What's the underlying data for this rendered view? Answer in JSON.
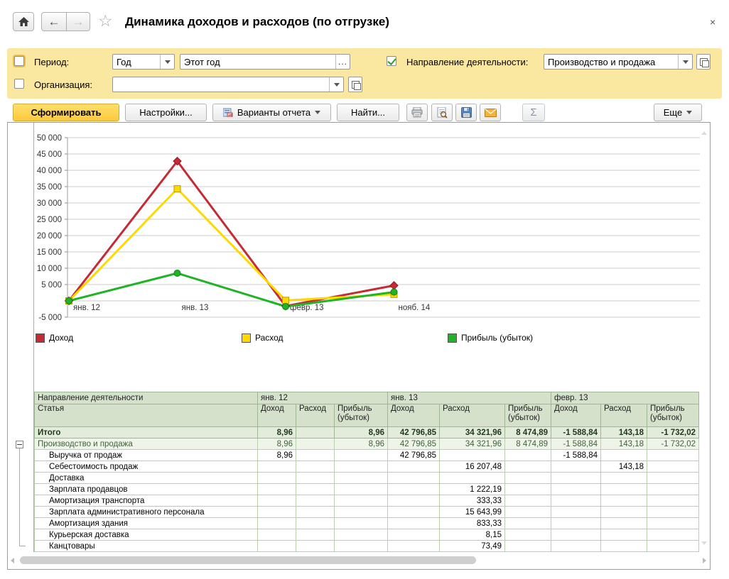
{
  "window": {
    "title": "Динамика доходов и расходов (по отгрузке)",
    "close": "×",
    "back_glyph": "←",
    "forward_glyph": "→",
    "star_glyph": "☆"
  },
  "filters": {
    "period": {
      "label": "Период:",
      "checked": false,
      "kind_value": "Год",
      "value": "Этот год",
      "more_button": "..."
    },
    "organization": {
      "label": "Организация:",
      "checked": false,
      "value": ""
    },
    "business_line": {
      "label": "Направление деятельности:",
      "checked": true,
      "value": "Производство и продажа"
    }
  },
  "toolbar": {
    "generate": "Сформировать",
    "settings": "Настройки...",
    "report_variants": "Варианты отчета",
    "find": "Найти...",
    "print_icon": "printer",
    "preview_icon": "print-preview",
    "save_icon": "save",
    "mail_icon": "email",
    "sigma": "Σ",
    "more": "Еще"
  },
  "chart_data": {
    "type": "line",
    "categories": [
      "янв. 12",
      "янв. 13",
      "февр. 13",
      "нояб. 14"
    ],
    "series": [
      {
        "name": "Доход",
        "color": "#c52b35",
        "marker": "diamond",
        "marker_stroke": "#8f1a22",
        "values": [
          8.96,
          42796.85,
          -1588.84,
          4700
        ]
      },
      {
        "name": "Расход",
        "color": "#ffd800",
        "marker": "square",
        "marker_stroke": "#bb9c00",
        "values": [
          0,
          34321.96,
          143.18,
          2000
        ]
      },
      {
        "name": "Прибыль (убыток)",
        "color": "#1fb325",
        "marker": "circle",
        "marker_stroke": "#12831a",
        "values": [
          8.96,
          8474.89,
          -1732.02,
          2700
        ]
      }
    ],
    "ylim": [
      -5000,
      50000
    ],
    "ytick_step": 5000,
    "yticks": [
      {
        "v": 50000,
        "label": "50 000"
      },
      {
        "v": 45000,
        "label": "45 000"
      },
      {
        "v": 40000,
        "label": "40 000"
      },
      {
        "v": 35000,
        "label": "35 000"
      },
      {
        "v": 30000,
        "label": "30 000"
      },
      {
        "v": 25000,
        "label": "25 000"
      },
      {
        "v": 20000,
        "label": "20 000"
      },
      {
        "v": 15000,
        "label": "15 000"
      },
      {
        "v": 10000,
        "label": "10 000"
      },
      {
        "v": 5000,
        "label": "5 000"
      },
      {
        "v": -5000,
        "label": "-5 000"
      }
    ],
    "grid": true,
    "legend_position": "bottom",
    "title": "",
    "xlabel": "",
    "ylabel": ""
  },
  "table": {
    "corner_top": "Направление деятельности",
    "corner_bottom": "Статья",
    "groups": [
      "янв. 12",
      "янв. 13",
      "февр. 13"
    ],
    "subheaders": [
      "Доход",
      "Расход",
      "Прибыль (убыток)"
    ],
    "rows": [
      {
        "label": "Итого",
        "style": "total",
        "values": [
          "8,96",
          "",
          "8,96",
          "42 796,85",
          "34 321,96",
          "8 474,89",
          "-1 588,84",
          "143,18",
          "-1 732,02"
        ]
      },
      {
        "label": "Производство и продажа",
        "style": "group",
        "expander": true,
        "values": [
          "8,96",
          "",
          "8,96",
          "42 796,85",
          "34 321,96",
          "8 474,89",
          "-1 588,84",
          "143,18",
          "-1 732,02"
        ]
      },
      {
        "label": "Выручка от продаж",
        "style": "detail",
        "values": [
          "8,96",
          "",
          "",
          "42 796,85",
          "",
          "",
          "-1 588,84",
          "",
          ""
        ]
      },
      {
        "label": "Себестоимость продаж",
        "style": "detail",
        "values": [
          "",
          "",
          "",
          "",
          "16 207,48",
          "",
          "",
          "143,18",
          ""
        ]
      },
      {
        "label": "Доставка",
        "style": "detail",
        "values": [
          "",
          "",
          "",
          "",
          "",
          "",
          "",
          "",
          ""
        ]
      },
      {
        "label": "Зарплата продавцов",
        "style": "detail",
        "values": [
          "",
          "",
          "",
          "",
          "1 222,19",
          "",
          "",
          "",
          ""
        ]
      },
      {
        "label": "Амортизация транспорта",
        "style": "detail",
        "values": [
          "",
          "",
          "",
          "",
          "333,33",
          "",
          "",
          "",
          ""
        ]
      },
      {
        "label": "Зарплата административного персонала",
        "style": "detail",
        "values": [
          "",
          "",
          "",
          "",
          "15 643,99",
          "",
          "",
          "",
          ""
        ]
      },
      {
        "label": "Амортизация здания",
        "style": "detail",
        "values": [
          "",
          "",
          "",
          "",
          "833,33",
          "",
          "",
          "",
          ""
        ]
      },
      {
        "label": "Курьерская доставка",
        "style": "detail",
        "values": [
          "",
          "",
          "",
          "",
          "8,15",
          "",
          "",
          "",
          ""
        ]
      },
      {
        "label": "Канцтовары",
        "style": "detail",
        "values": [
          "",
          "",
          "",
          "",
          "73,49",
          "",
          "",
          "",
          ""
        ]
      }
    ]
  }
}
